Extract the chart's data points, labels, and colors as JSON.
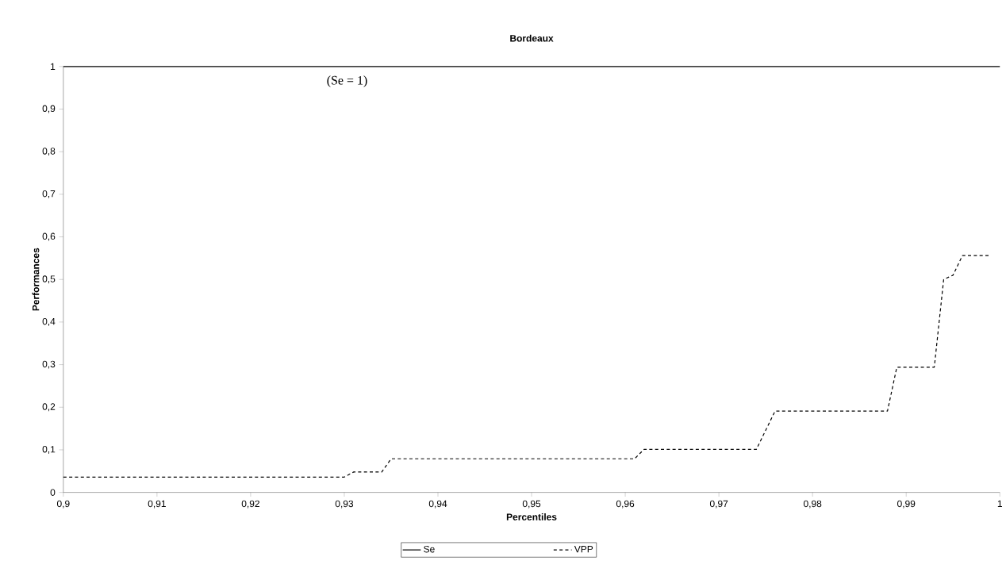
{
  "chart_data": {
    "type": "line",
    "title": "Bordeaux",
    "xlabel": "Percentiles",
    "ylabel": "Performances",
    "annotations": [
      "(Se = 1)"
    ],
    "xlim": [
      0.9,
      1
    ],
    "ylim": [
      0,
      1
    ],
    "xticks": [
      {
        "value": 0.9,
        "label": "0,9"
      },
      {
        "value": 0.91,
        "label": "0,91"
      },
      {
        "value": 0.92,
        "label": "0,92"
      },
      {
        "value": 0.93,
        "label": "0,93"
      },
      {
        "value": 0.94,
        "label": "0,94"
      },
      {
        "value": 0.95,
        "label": "0,95"
      },
      {
        "value": 0.96,
        "label": "0,96"
      },
      {
        "value": 0.97,
        "label": "0,97"
      },
      {
        "value": 0.98,
        "label": "0,98"
      },
      {
        "value": 0.99,
        "label": "0,99"
      },
      1
    ],
    "yticks": [
      0,
      {
        "value": 0.1,
        "label": "0,1"
      },
      {
        "value": 0.2,
        "label": "0,2"
      },
      {
        "value": 0.3,
        "label": "0,3"
      },
      {
        "value": 0.4,
        "label": "0,4"
      },
      {
        "value": 0.5,
        "label": "0,5"
      },
      {
        "value": 0.6,
        "label": "0,6"
      },
      {
        "value": 0.7,
        "label": "0,7"
      },
      {
        "value": 0.8,
        "label": "0,8"
      },
      {
        "value": 0.9,
        "label": "0,9"
      },
      1
    ],
    "grid": false,
    "legend": "bottom",
    "marker": "none",
    "series": [
      {
        "name": "Se",
        "color": "#000000",
        "line_style": "solid",
        "x": [
          0.9,
          1
        ],
        "values": [
          1,
          1
        ]
      },
      {
        "name": "VPP",
        "color": "#000000",
        "line_style": "dashed",
        "x": [
          0.9,
          0.93,
          0.931,
          0.934,
          0.935,
          0.961,
          0.962,
          0.974,
          0.976,
          0.988,
          0.989,
          0.993,
          0.994,
          0.995,
          0.996,
          0.999
        ],
        "values": [
          0.036,
          0.036,
          0.048,
          0.048,
          0.079,
          0.079,
          0.101,
          0.101,
          0.191,
          0.191,
          0.294,
          0.294,
          0.5,
          0.51,
          0.556,
          0.556
        ]
      }
    ]
  }
}
